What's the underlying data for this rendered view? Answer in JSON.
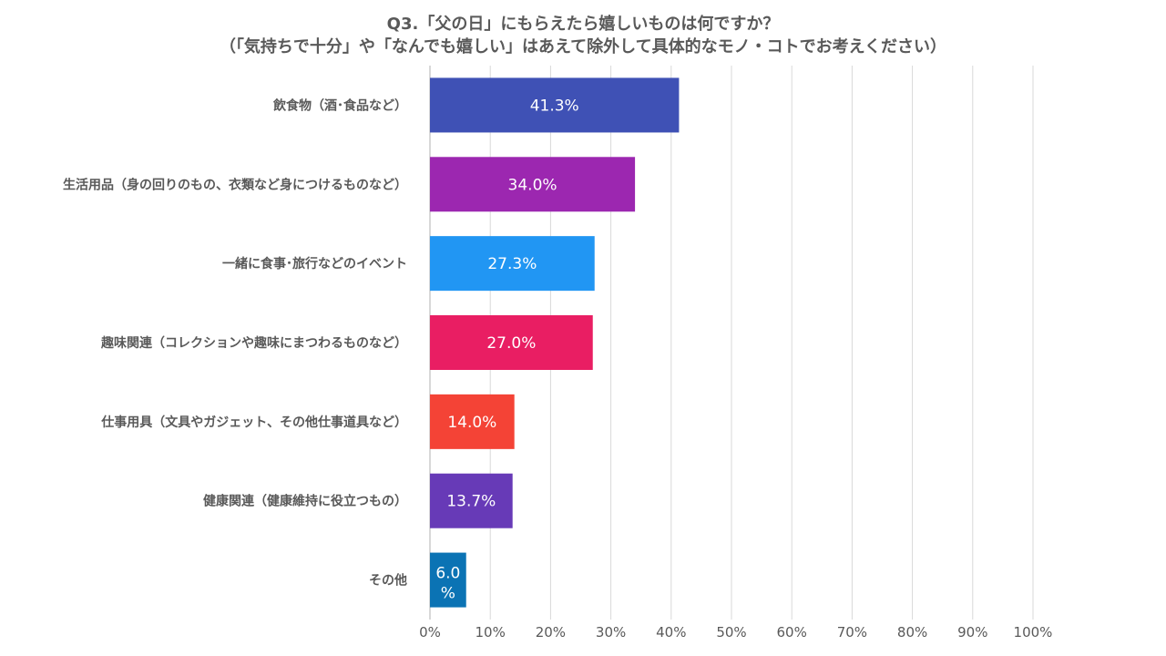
{
  "chart_data": {
    "type": "bar",
    "orientation": "horizontal",
    "title": "Q3.「父の日」にもらえたら嬉しいものは何ですか？",
    "subtitle": "（「気持ちで十分」や「なんでも嬉しい」はあえて除外して具体的なモノ・コトでお考えください）",
    "categories": [
      "飲食物（酒･食品など）",
      "生活用品（身の回りのもの、衣類など身につけるものなど）",
      "一緒に食事･旅行などのイベント",
      "趣味関連（コレクションや趣味にまつわるものなど）",
      "仕事用具（文具やガジェット、その他仕事道具など）",
      "健康関連（健康維持に役立つもの）",
      "その他"
    ],
    "values": [
      41.3,
      34.0,
      27.3,
      27.0,
      14.0,
      13.7,
      6.0
    ],
    "data_labels": [
      "41.3%",
      "34.0%",
      "27.3%",
      "27.0%",
      "14.0%",
      "13.7%",
      "6.0%"
    ],
    "bar_colors": [
      "#3f51b5",
      "#9c27b0",
      "#2196f3",
      "#e91e63",
      "#f44336",
      "#673ab7",
      "#0b73b4"
    ],
    "xlim": [
      0,
      100
    ],
    "xticks": [
      "0%",
      "10%",
      "20%",
      "30%",
      "40%",
      "50%",
      "60%",
      "70%",
      "80%",
      "90%",
      "100%"
    ],
    "grid": true,
    "legend": "none"
  }
}
